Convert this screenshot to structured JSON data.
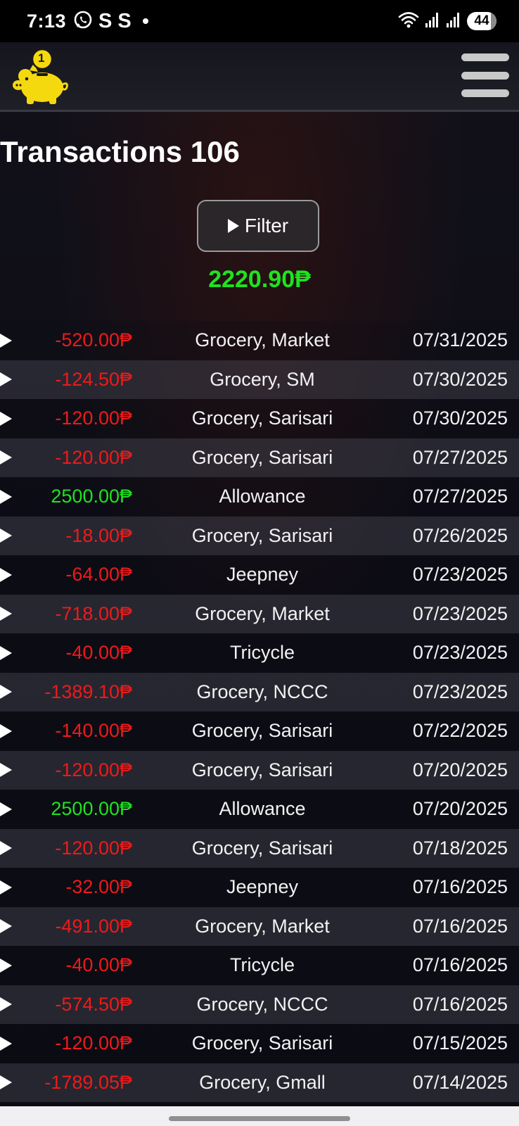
{
  "status_bar": {
    "time": "7:13",
    "left_icons": [
      "whatsapp-icon",
      "s-app-icon",
      "s-app-icon",
      "dot-icon"
    ],
    "s_letter": "S",
    "right_icons": [
      "wifi-icon",
      "signal-icon",
      "signal-icon"
    ],
    "battery_level": "44"
  },
  "header": {
    "logo_icon": "piggy-bank-icon",
    "logo_coin_label": "1",
    "menu_icon": "hamburger-menu-icon"
  },
  "page": {
    "title": "Transactions 106",
    "filter_label": "Filter",
    "total": "2220.90₱"
  },
  "colors": {
    "negative": "#ee1a1a",
    "positive": "#1fe31f",
    "logo": "#f5d90f"
  },
  "transactions": [
    {
      "amount": "-520.00₱",
      "category": "Grocery, Market",
      "date": "07/31/2025",
      "type": "neg"
    },
    {
      "amount": "-124.50₱",
      "category": "Grocery, SM",
      "date": "07/30/2025",
      "type": "neg"
    },
    {
      "amount": "-120.00₱",
      "category": "Grocery, Sarisari",
      "date": "07/30/2025",
      "type": "neg"
    },
    {
      "amount": "-120.00₱",
      "category": "Grocery, Sarisari",
      "date": "07/27/2025",
      "type": "neg"
    },
    {
      "amount": "2500.00₱",
      "category": "Allowance",
      "date": "07/27/2025",
      "type": "pos"
    },
    {
      "amount": "-18.00₱",
      "category": "Grocery, Sarisari",
      "date": "07/26/2025",
      "type": "neg"
    },
    {
      "amount": "-64.00₱",
      "category": "Jeepney",
      "date": "07/23/2025",
      "type": "neg"
    },
    {
      "amount": "-718.00₱",
      "category": "Grocery, Market",
      "date": "07/23/2025",
      "type": "neg"
    },
    {
      "amount": "-40.00₱",
      "category": "Tricycle",
      "date": "07/23/2025",
      "type": "neg"
    },
    {
      "amount": "-1389.10₱",
      "category": "Grocery, NCCC",
      "date": "07/23/2025",
      "type": "neg"
    },
    {
      "amount": "-140.00₱",
      "category": "Grocery, Sarisari",
      "date": "07/22/2025",
      "type": "neg"
    },
    {
      "amount": "-120.00₱",
      "category": "Grocery, Sarisari",
      "date": "07/20/2025",
      "type": "neg"
    },
    {
      "amount": "2500.00₱",
      "category": "Allowance",
      "date": "07/20/2025",
      "type": "pos"
    },
    {
      "amount": "-120.00₱",
      "category": "Grocery, Sarisari",
      "date": "07/18/2025",
      "type": "neg"
    },
    {
      "amount": "-32.00₱",
      "category": "Jeepney",
      "date": "07/16/2025",
      "type": "neg"
    },
    {
      "amount": "-491.00₱",
      "category": "Grocery, Market",
      "date": "07/16/2025",
      "type": "neg"
    },
    {
      "amount": "-40.00₱",
      "category": "Tricycle",
      "date": "07/16/2025",
      "type": "neg"
    },
    {
      "amount": "-574.50₱",
      "category": "Grocery, NCCC",
      "date": "07/16/2025",
      "type": "neg"
    },
    {
      "amount": "-120.00₱",
      "category": "Grocery, Sarisari",
      "date": "07/15/2025",
      "type": "neg"
    },
    {
      "amount": "-1789.05₱",
      "category": "Grocery, Gmall",
      "date": "07/14/2025",
      "type": "neg"
    }
  ]
}
